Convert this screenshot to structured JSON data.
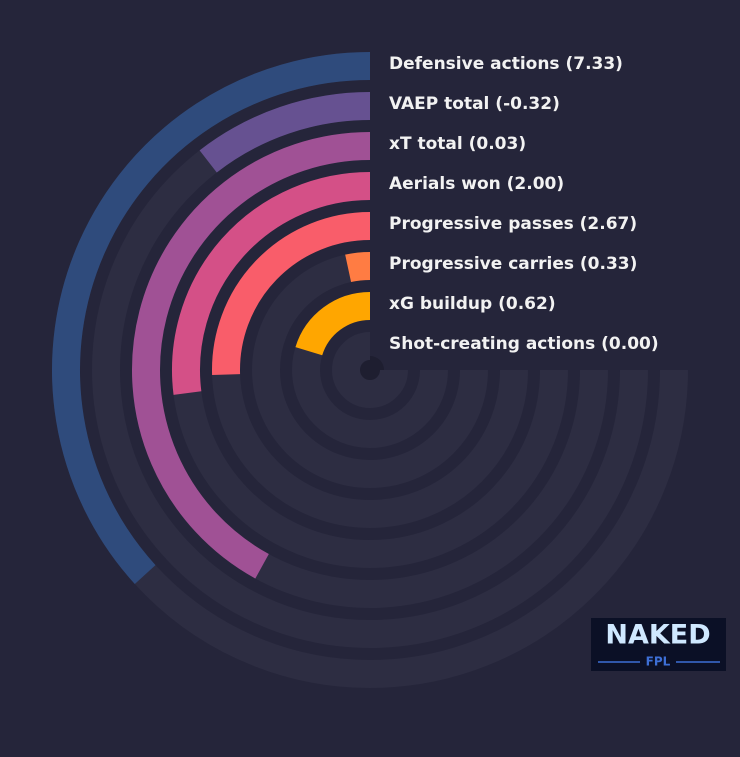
{
  "chart_data": {
    "type": "radial_bar",
    "categories": [
      "Defensive actions (7.33)",
      "VAEP total (-0.32)",
      "xT total (0.03)",
      "Aerials won (2.00)",
      "Progressive passes (2.67)",
      "Progressive carries (0.33)",
      "xG buildup (0.62)",
      "Shot-creating actions (0.00)"
    ],
    "values": [
      49,
      14,
      56,
      36,
      34,
      4.5,
      27,
      0
    ],
    "colors": [
      "#2f4b7c",
      "#665191",
      "#a05195",
      "#d45087",
      "#f95d6a",
      "#ff7c43",
      "#ffa600",
      "#ffd000"
    ],
    "rlim": [
      0,
      100
    ]
  },
  "logo": {
    "title": "NAKED",
    "subtitle": "FPL"
  }
}
